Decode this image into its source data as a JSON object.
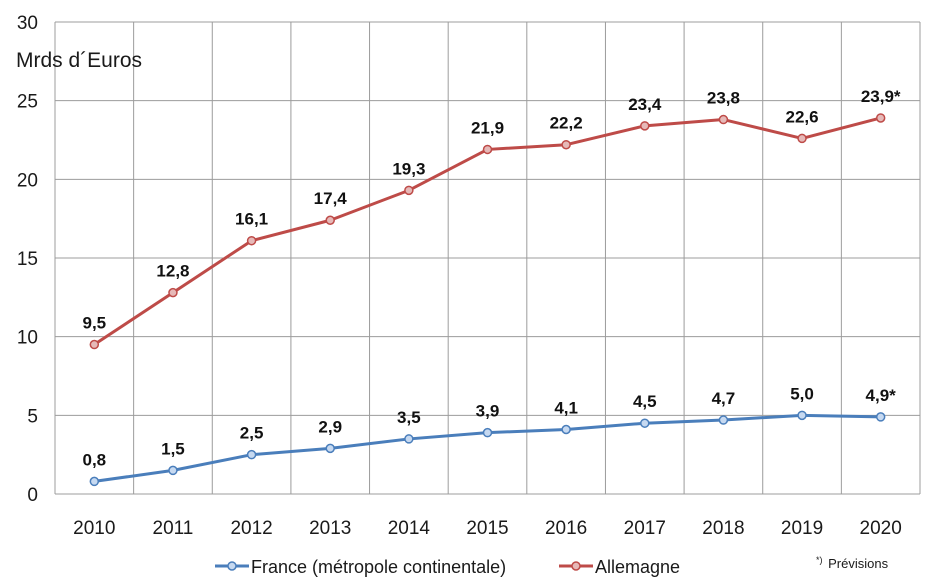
{
  "chart_data": {
    "type": "line",
    "ylabel": "Mrds d´Euros",
    "ylim": [
      0,
      30
    ],
    "yticks": [
      "0",
      "5",
      "10",
      "15",
      "20",
      "25",
      "30"
    ],
    "categories": [
      "2010",
      "2011",
      "2012",
      "2013",
      "2014",
      "2015",
      "2016",
      "2017",
      "2018",
      "2019",
      "2020"
    ],
    "grid": true,
    "legend_position": "bottom",
    "series": [
      {
        "name": "France (métropole continentale)",
        "color": "#4a7ebb",
        "marker_fill": "#c6d9f1",
        "values": [
          0.8,
          1.5,
          2.5,
          2.9,
          3.5,
          3.9,
          4.1,
          4.5,
          4.7,
          5.0,
          4.9
        ],
        "labels": [
          "0,8",
          "1,5",
          "2,5",
          "2,9",
          "3,5",
          "3,9",
          "4,1",
          "4,5",
          "4,7",
          "5,0",
          "4,9*"
        ]
      },
      {
        "name": "Allemagne",
        "color": "#be4b48",
        "marker_fill": "#e6b9b8",
        "values": [
          9.5,
          12.8,
          16.1,
          17.4,
          19.3,
          21.9,
          22.2,
          23.4,
          23.8,
          22.6,
          23.9
        ],
        "labels": [
          "9,5",
          "12,8",
          "16,1",
          "17,4",
          "19,3",
          "21,9",
          "22,2",
          "23,4",
          "23,8",
          "22,6",
          "23,9*"
        ]
      }
    ],
    "footnote": {
      "marker": "*)",
      "text": "Prévisions"
    }
  }
}
